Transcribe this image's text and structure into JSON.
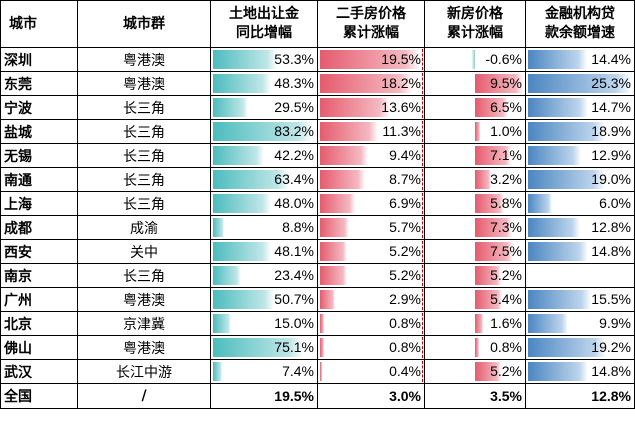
{
  "headers": {
    "city": "城市",
    "group": "城市群",
    "land": [
      "土地出让金",
      "同比增幅"
    ],
    "second_hand": [
      "二手房价格",
      "累计涨幅"
    ],
    "new_house": [
      "新房价格",
      "累计涨幅"
    ],
    "loans": [
      "金融机构贷",
      "款余额增速"
    ]
  },
  "colors": {
    "land_bar": "#4cbcbe",
    "second_hand_bar": "#e55b6e",
    "new_house_bar": "#e55b6e",
    "new_house_negative_bar": "#8fd0c4",
    "loan_bar": "#4b86c1"
  },
  "rows": [
    {
      "city": "深圳",
      "group": "粤港澳",
      "land": 53.3,
      "land_label": "53.3%",
      "second": 19.5,
      "second_label": "19.5%",
      "new": -0.6,
      "new_label": "-0.6%",
      "loan": 14.4,
      "loan_label": "14.4%"
    },
    {
      "city": "东莞",
      "group": "粤港澳",
      "land": 48.3,
      "land_label": "48.3%",
      "second": 18.2,
      "second_label": "18.2%",
      "new": 9.5,
      "new_label": "9.5%",
      "loan": 25.3,
      "loan_label": "25.3%"
    },
    {
      "city": "宁波",
      "group": "长三角",
      "land": 29.5,
      "land_label": "29.5%",
      "second": 13.6,
      "second_label": "13.6%",
      "new": 6.5,
      "new_label": "6.5%",
      "loan": 14.7,
      "loan_label": "14.7%"
    },
    {
      "city": "盐城",
      "group": "长三角",
      "land": 83.2,
      "land_label": "83.2%",
      "second": 11.3,
      "second_label": "11.3%",
      "new": 1.0,
      "new_label": "1.0%",
      "loan": 18.9,
      "loan_label": "18.9%"
    },
    {
      "city": "无锡",
      "group": "长三角",
      "land": 42.2,
      "land_label": "42.2%",
      "second": 9.4,
      "second_label": "9.4%",
      "new": 7.1,
      "new_label": "7.1%",
      "loan": 12.9,
      "loan_label": "12.9%"
    },
    {
      "city": "南通",
      "group": "长三角",
      "land": 63.4,
      "land_label": "63.4%",
      "second": 8.7,
      "second_label": "8.7%",
      "new": 3.2,
      "new_label": "3.2%",
      "loan": 19.0,
      "loan_label": "19.0%"
    },
    {
      "city": "上海",
      "group": "长三角",
      "land": 48.0,
      "land_label": "48.0%",
      "second": 6.9,
      "second_label": "6.9%",
      "new": 5.8,
      "new_label": "5.8%",
      "loan": 6.0,
      "loan_label": "6.0%"
    },
    {
      "city": "成都",
      "group": "成渝",
      "land": 8.8,
      "land_label": "8.8%",
      "second": 5.7,
      "second_label": "5.7%",
      "new": 7.3,
      "new_label": "7.3%",
      "loan": 12.8,
      "loan_label": "12.8%"
    },
    {
      "city": "西安",
      "group": "关中",
      "land": 48.1,
      "land_label": "48.1%",
      "second": 5.2,
      "second_label": "5.2%",
      "new": 7.5,
      "new_label": "7.5%",
      "loan": 14.8,
      "loan_label": "14.8%"
    },
    {
      "city": "南京",
      "group": "长三角",
      "land": 23.4,
      "land_label": "23.4%",
      "second": 5.2,
      "second_label": "5.2%",
      "new": 5.2,
      "new_label": "5.2%",
      "loan": null,
      "loan_label": ""
    },
    {
      "city": "广州",
      "group": "粤港澳",
      "land": 50.7,
      "land_label": "50.7%",
      "second": 2.9,
      "second_label": "2.9%",
      "new": 5.4,
      "new_label": "5.4%",
      "loan": 15.5,
      "loan_label": "15.5%"
    },
    {
      "city": "北京",
      "group": "京津冀",
      "land": 15.0,
      "land_label": "15.0%",
      "second": 0.8,
      "second_label": "0.8%",
      "new": 1.6,
      "new_label": "1.6%",
      "loan": 9.9,
      "loan_label": "9.9%"
    },
    {
      "city": "佛山",
      "group": "粤港澳",
      "land": 75.1,
      "land_label": "75.1%",
      "second": 0.8,
      "second_label": "0.8%",
      "new": 0.8,
      "new_label": "0.8%",
      "loan": 19.2,
      "loan_label": "19.2%"
    },
    {
      "city": "武汉",
      "group": "长江中游",
      "land": 7.4,
      "land_label": "7.4%",
      "second": 0.4,
      "second_label": "0.4%",
      "new": 5.2,
      "new_label": "5.2%",
      "loan": 14.8,
      "loan_label": "14.8%"
    }
  ],
  "total": {
    "city": "全国",
    "group": "/",
    "land": "19.5%",
    "second": "3.0%",
    "new": "3.5%",
    "loan": "12.8%"
  }
}
